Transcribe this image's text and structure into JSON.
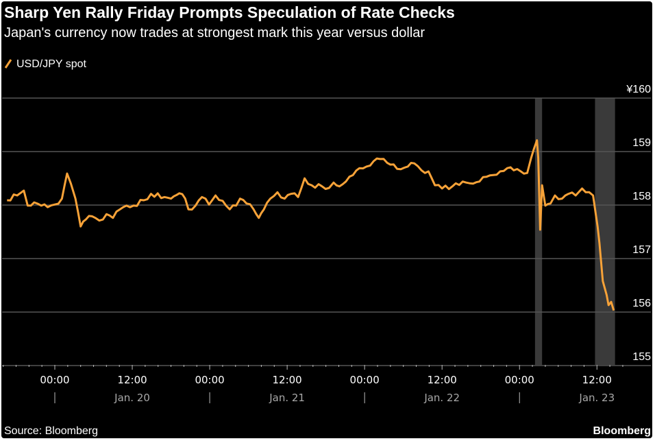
{
  "chart_data": {
    "type": "line",
    "title": "Sharp Yen Rally Friday Prompts Speculation of Rate Checks",
    "subtitle": "Japan's currency now trades at strongest mark this year versus dollar",
    "legend": [
      {
        "name": "USD/JPY spot",
        "color": "#f7a238"
      }
    ],
    "legend_placement": "top-left",
    "x_unit": "hours since Jan. 20 00:00",
    "xlim": [
      -8,
      88
    ],
    "ylim": [
      155,
      160
    ],
    "y_ticks": [
      {
        "value": 160,
        "label": "¥160"
      },
      {
        "value": 159,
        "label": "159"
      },
      {
        "value": 158,
        "label": "158"
      },
      {
        "value": 157,
        "label": "157"
      },
      {
        "value": 156,
        "label": "156"
      },
      {
        "value": 155,
        "label": "155"
      }
    ],
    "x_ticks": [
      {
        "value": 0,
        "label": "00:00"
      },
      {
        "value": 12,
        "label": "12:00"
      },
      {
        "value": 24,
        "label": "00:00"
      },
      {
        "value": 36,
        "label": "12:00"
      },
      {
        "value": 48,
        "label": "00:00"
      },
      {
        "value": 60,
        "label": "12:00"
      },
      {
        "value": 72,
        "label": "00:00"
      },
      {
        "value": 84,
        "label": "12:00"
      }
    ],
    "date_labels": [
      {
        "value": 12,
        "label": "Jan. 20"
      },
      {
        "value": 36,
        "label": "Jan. 21"
      },
      {
        "value": 60,
        "label": "Jan. 22"
      },
      {
        "value": 84,
        "label": "Jan. 23"
      }
    ],
    "shaded_ranges": [
      [
        74.4,
        75.5
      ],
      [
        83.7,
        86.8
      ]
    ],
    "grid": true,
    "series": [
      {
        "name": "USD/JPY spot",
        "points": [
          [
            -7.4,
            158.09
          ],
          [
            -4.8,
            158.27
          ],
          [
            -4.2,
            157.99
          ],
          [
            -3.2,
            158.05
          ],
          [
            -2.1,
            157.99
          ],
          [
            -1.1,
            157.96
          ],
          [
            0,
            158.01
          ],
          [
            1.1,
            158.12
          ],
          [
            1.9,
            158.59
          ],
          [
            2.5,
            158.4
          ],
          [
            3.2,
            158.12
          ],
          [
            4.0,
            157.6
          ],
          [
            4.8,
            157.73
          ],
          [
            5.8,
            157.79
          ],
          [
            6.9,
            157.71
          ],
          [
            8.0,
            157.83
          ],
          [
            9.0,
            157.76
          ],
          [
            10.1,
            157.92
          ],
          [
            11.1,
            157.99
          ],
          [
            12.2,
            157.99
          ],
          [
            13.8,
            158.09
          ],
          [
            14.9,
            158.21
          ],
          [
            17.0,
            158.15
          ],
          [
            18.0,
            158.12
          ],
          [
            19.3,
            158.22
          ],
          [
            20.2,
            158.12
          ],
          [
            20.7,
            157.92
          ],
          [
            21.8,
            157.99
          ],
          [
            22.8,
            158.15
          ],
          [
            23.9,
            158.01
          ],
          [
            24.9,
            158.18
          ],
          [
            26.0,
            158.08
          ],
          [
            27.1,
            157.92
          ],
          [
            28.1,
            157.99
          ],
          [
            28.7,
            158.12
          ],
          [
            29.7,
            158.03
          ],
          [
            30.8,
            157.92
          ],
          [
            31.6,
            157.76
          ],
          [
            32.4,
            157.92
          ],
          [
            33.4,
            158.12
          ],
          [
            34.5,
            158.24
          ],
          [
            35.6,
            158.12
          ],
          [
            36.6,
            158.21
          ],
          [
            37.7,
            158.15
          ],
          [
            38.7,
            158.5
          ],
          [
            39.8,
            158.37
          ],
          [
            41.4,
            158.35
          ],
          [
            42.5,
            158.32
          ],
          [
            43.2,
            158.42
          ],
          [
            44.1,
            158.35
          ],
          [
            45.1,
            158.44
          ],
          [
            46.2,
            158.56
          ],
          [
            47.2,
            158.69
          ],
          [
            48.3,
            158.72
          ],
          [
            49.4,
            158.82
          ],
          [
            50.4,
            158.86
          ],
          [
            51.5,
            158.79
          ],
          [
            52.5,
            158.76
          ],
          [
            53.6,
            158.67
          ],
          [
            54.7,
            158.72
          ],
          [
            55.7,
            158.78
          ],
          [
            56.8,
            158.65
          ],
          [
            57.9,
            158.63
          ],
          [
            58.9,
            158.37
          ],
          [
            60.0,
            158.31
          ],
          [
            61.6,
            158.35
          ],
          [
            63.2,
            158.44
          ],
          [
            64.8,
            158.4
          ],
          [
            65.8,
            158.44
          ],
          [
            66.9,
            158.53
          ],
          [
            67.9,
            158.56
          ],
          [
            69.0,
            158.63
          ],
          [
            70.1,
            158.69
          ],
          [
            71.1,
            158.65
          ],
          [
            72.2,
            158.63
          ],
          [
            73.2,
            158.6
          ],
          [
            73.8,
            158.88
          ],
          [
            74.2,
            159.04
          ],
          [
            74.7,
            159.21
          ],
          [
            74.9,
            158.88
          ],
          [
            75.2,
            157.54
          ],
          [
            75.5,
            158.37
          ],
          [
            76.0,
            157.99
          ],
          [
            76.8,
            158.03
          ],
          [
            77.5,
            158.18
          ],
          [
            78.6,
            158.12
          ],
          [
            79.6,
            158.21
          ],
          [
            80.7,
            158.18
          ],
          [
            81.7,
            158.31
          ],
          [
            82.8,
            158.24
          ],
          [
            83.4,
            158.18
          ],
          [
            84.1,
            157.6
          ],
          [
            84.4,
            157.28
          ],
          [
            84.9,
            156.58
          ],
          [
            85.5,
            156.32
          ],
          [
            85.8,
            156.13
          ],
          [
            86.2,
            156.19
          ],
          [
            86.6,
            156.03
          ]
        ]
      }
    ],
    "source": "Source: Bloomberg",
    "brand": "Bloomberg"
  },
  "colors": {
    "line": "#f7a238",
    "grid": "#555555",
    "shade": "#3a3a3a",
    "text": "#ffffff",
    "muted": "#a8a8a8"
  }
}
